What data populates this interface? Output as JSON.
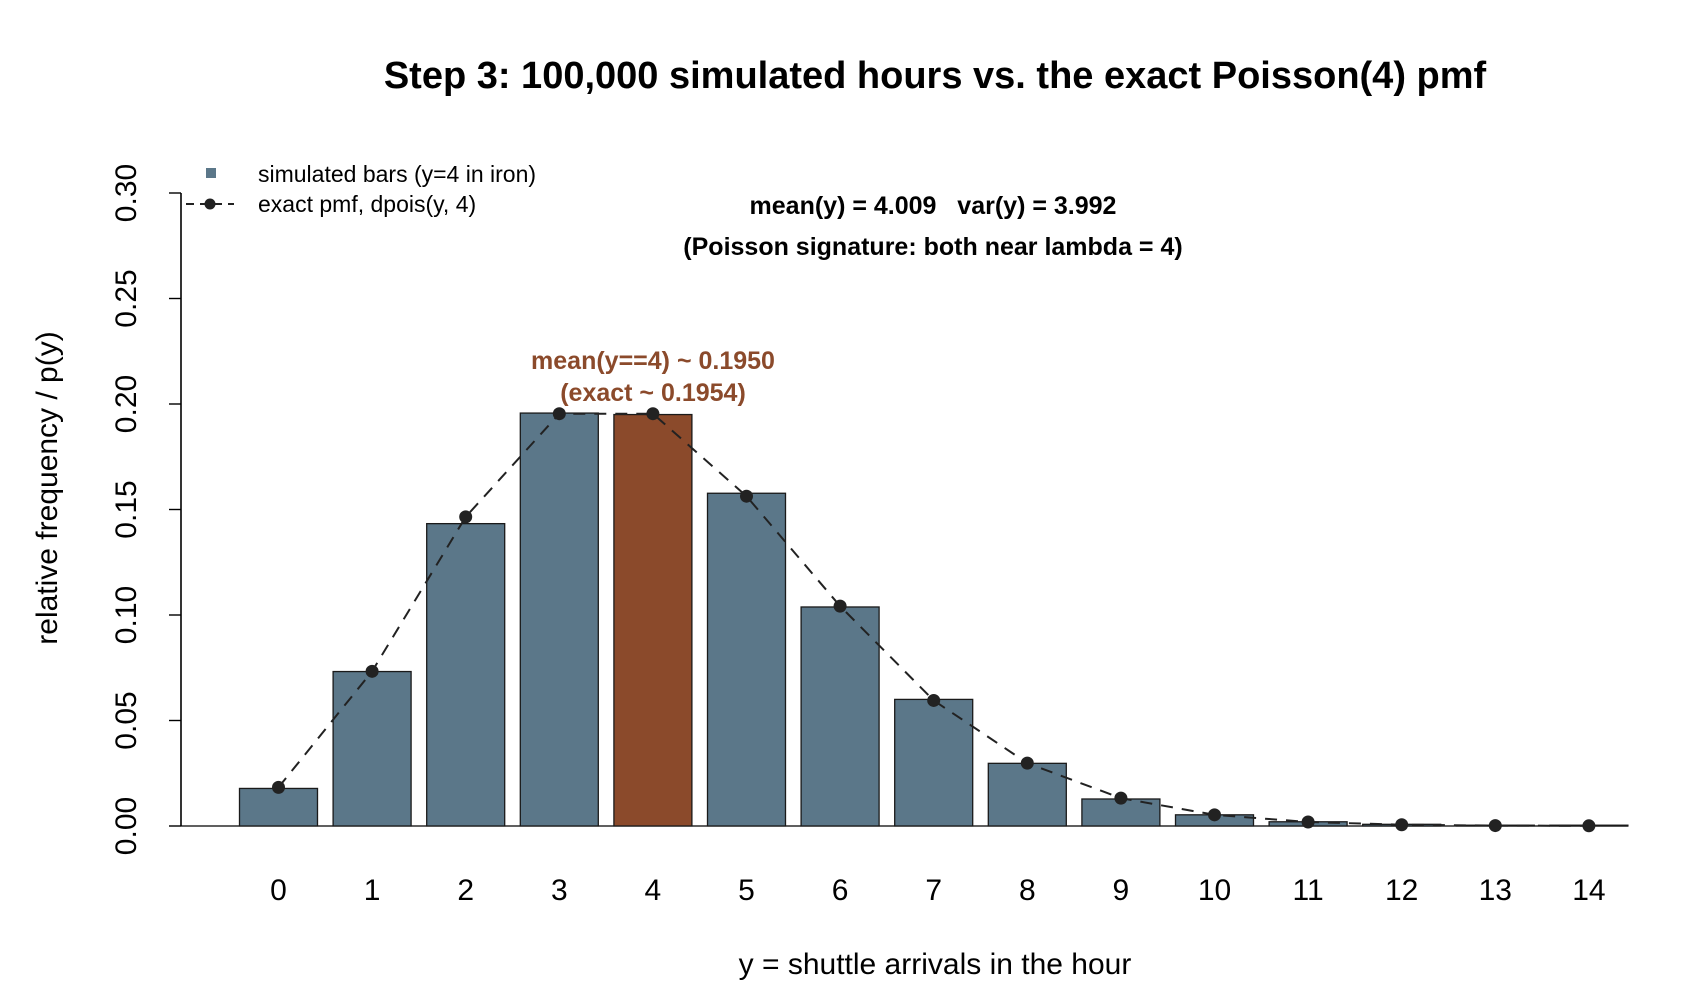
{
  "chart_data": {
    "type": "bar",
    "title": "Step 3: 100,000 simulated hours vs. the exact Poisson(4) pmf",
    "xlabel": "y = shuttle arrivals in the hour",
    "ylabel": "relative frequency / p(y)",
    "ylim": [
      0,
      0.3
    ],
    "yticks": [
      "0.00",
      "0.05",
      "0.10",
      "0.15",
      "0.20",
      "0.25",
      "0.30"
    ],
    "categories": [
      "0",
      "1",
      "2",
      "3",
      "4",
      "5",
      "6",
      "7",
      "8",
      "9",
      "10",
      "11",
      "12",
      "13",
      "14"
    ],
    "series": [
      {
        "name": "simulated bars (y=4 in iron)",
        "type": "bar",
        "values": [
          0.0178,
          0.0732,
          0.1433,
          0.1957,
          0.195,
          0.1577,
          0.1038,
          0.06,
          0.0297,
          0.0128,
          0.0053,
          0.002,
          0.0008,
          0.0002,
          0.0001
        ]
      },
      {
        "name": "exact pmf, dpois(y, 4)",
        "type": "line",
        "values": [
          0.0183,
          0.0733,
          0.1465,
          0.1954,
          0.1954,
          0.1563,
          0.1042,
          0.0595,
          0.0298,
          0.0132,
          0.0053,
          0.0019,
          0.0006,
          0.0002,
          0.0001
        ]
      }
    ],
    "highlight_index": 4,
    "legend_position": "top-left",
    "grid": false,
    "annotations": {
      "stats_line1": "mean(y) = 4.009   var(y) = 3.992",
      "stats_line2": "(Poisson signature: both near lambda = 4)",
      "highlight_line1": "mean(y==4) ~ 0.1950",
      "highlight_line2": "(exact ~ 0.1954)"
    },
    "colors": {
      "bar": "#5B7789",
      "highlight": "#8B4A2B",
      "line": "#222222",
      "highlight_text": "#8B4A2B"
    }
  }
}
